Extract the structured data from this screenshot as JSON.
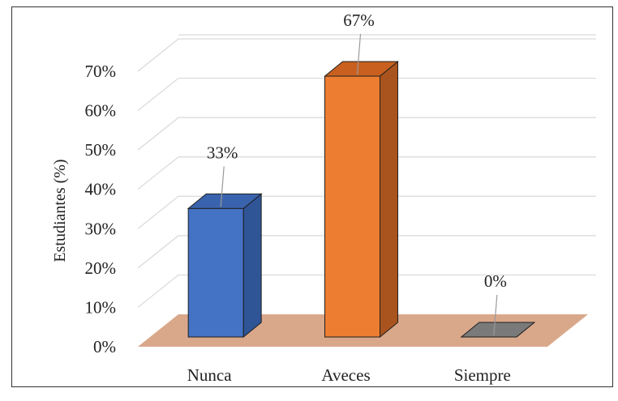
{
  "chart_data": {
    "type": "bar",
    "categories": [
      "Nunca",
      "Aveces",
      "Siempre"
    ],
    "values": [
      33,
      67,
      0
    ],
    "data_labels": [
      "33%",
      "67%",
      "0%"
    ],
    "title": "",
    "xlabel": "",
    "ylabel": "Estudiantes (%)",
    "ylim": [
      0,
      70
    ],
    "yticks": [
      "0%",
      "10%",
      "20%",
      "30%",
      "40%",
      "50%",
      "60%",
      "70%"
    ],
    "grid": true,
    "legend": "none",
    "colors": {
      "bar_fronts": [
        "#4472c4",
        "#ed7d31",
        "#8c8c8c"
      ],
      "bar_sides": [
        "#2f5597",
        "#a9541e",
        "#5f5f5f"
      ],
      "bar_tops": [
        "#3a63ad",
        "#c9601f",
        "#7a7a7a"
      ],
      "floor": "#d9a88a",
      "grid": "#d9d9d9"
    }
  }
}
